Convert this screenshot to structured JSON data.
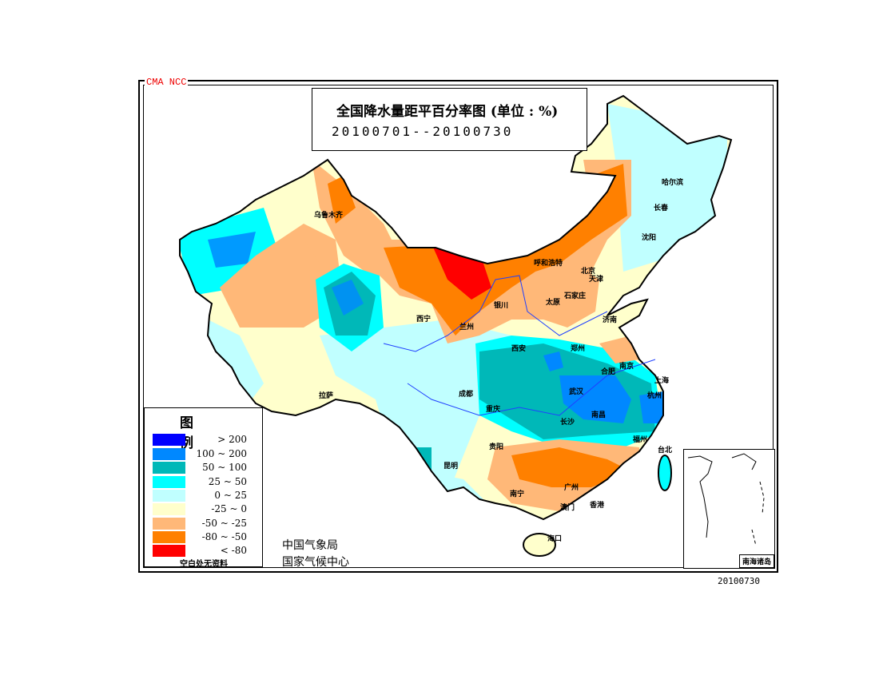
{
  "header": {
    "agency_tag": "CMA  NCC"
  },
  "title": {
    "main": "全国降水量距平百分率图 (单位 : %)",
    "period": "20100701--20100730"
  },
  "legend": {
    "title": "图  例",
    "items": [
      {
        "label": "> 200",
        "color": "#0000ff"
      },
      {
        "label": "100 ~ 200",
        "color": "#0088ff"
      },
      {
        "label": "50 ~ 100",
        "color": "#00b8b8"
      },
      {
        "label": "25 ~ 50",
        "color": "#00ffff"
      },
      {
        "label": "0 ~ 25",
        "color": "#c0ffff"
      },
      {
        "label": "-25 ~ 0",
        "color": "#ffffcc"
      },
      {
        "label": "-50 ~ -25",
        "color": "#ffb878"
      },
      {
        "label": "-80 ~ -50",
        "color": "#ff8000"
      },
      {
        "label": "< -80",
        "color": "#ff0000"
      }
    ],
    "note": "空白处无资料"
  },
  "organizations": [
    "中国气象局",
    "国家气候中心"
  ],
  "cities": [
    "乌鲁木齐",
    "拉萨",
    "西宁",
    "兰州",
    "银川",
    "呼和浩特",
    "北京",
    "天津",
    "太原",
    "石家庄",
    "济南",
    "郑州",
    "西安",
    "成都",
    "重庆",
    "武汉",
    "合肥",
    "南京",
    "上海",
    "杭州",
    "长沙",
    "南昌",
    "福州",
    "贵阳",
    "昆明",
    "南宁",
    "广州",
    "澳门",
    "香港",
    "海口",
    "台北",
    "哈尔滨",
    "长春",
    "沈阳"
  ],
  "inset": {
    "label": "南海诸岛"
  },
  "footer": {
    "date": "20100730"
  }
}
